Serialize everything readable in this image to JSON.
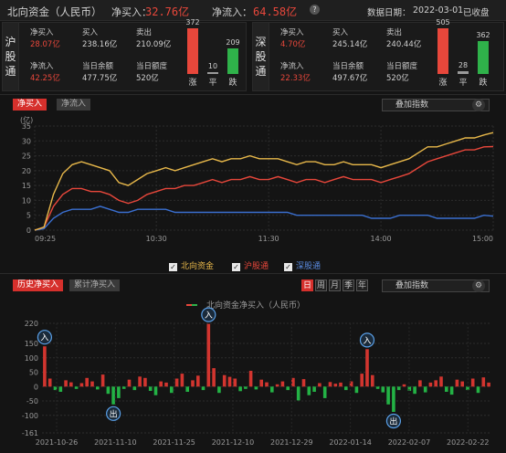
{
  "header": {
    "title": "北向资金（人民币）",
    "net_buy_label": "净买入：",
    "net_buy_value": "32.76亿",
    "net_inflow_label": "净流入：",
    "net_inflow_value": "64.58亿",
    "info_icon": "info-icon",
    "date_label": "数据日期：",
    "date_value": "2022-03-01",
    "status": "已收盘"
  },
  "sh": {
    "label": "沪股通",
    "net_buy_label": "净买入",
    "net_buy": "28.07亿",
    "buy_label": "买入",
    "buy": "238.16亿",
    "sell_label": "卖出",
    "sell": "210.09亿",
    "net_inflow_label": "净流入",
    "net_inflow": "42.25亿",
    "balance_label": "当日余额",
    "balance": "477.75亿",
    "quota_label": "当日额度",
    "quota": "520亿",
    "up_count": 372,
    "flat_count": 10,
    "down_count": 209,
    "up_label": "涨",
    "flat_label": "平",
    "down_label": "跌"
  },
  "sz": {
    "label": "深股通",
    "net_buy_label": "净买入",
    "net_buy": "4.70亿",
    "buy_label": "买入",
    "buy": "245.14亿",
    "sell_label": "卖出",
    "sell": "240.44亿",
    "net_inflow_label": "净流入",
    "net_inflow": "22.33亿",
    "balance_label": "当日余额",
    "balance": "497.67亿",
    "quota_label": "当日额度",
    "quota": "520亿",
    "up_count": 505,
    "flat_count": 28,
    "down_count": 362,
    "up_label": "涨",
    "flat_label": "平",
    "down_label": "跌"
  },
  "intraday": {
    "tabs": [
      "净买入",
      "净流入"
    ],
    "active_tab": 0,
    "overlay_select": "叠加指数",
    "legend": [
      "北向资金",
      "沪股通",
      "深股通"
    ]
  },
  "history": {
    "tabs": [
      "历史净买入",
      "累计净买入"
    ],
    "active_tab": 0,
    "periods": [
      "日",
      "周",
      "月",
      "季",
      "年"
    ],
    "active_period": 0,
    "overlay_select": "叠加指数",
    "marker_in": "入",
    "marker_out": "出"
  },
  "colors": {
    "red": "#e8473b",
    "green": "#2fb24a",
    "yellow": "#e8b84a",
    "blue": "#3a6fd0"
  },
  "chart_data": [
    {
      "type": "line",
      "title": "",
      "ylabel": "(亿)",
      "x_ticks": [
        "09:25",
        "10:30",
        "11:30",
        "14:00",
        "15:00"
      ],
      "y_ticks": [
        0,
        5,
        10,
        15,
        20,
        25,
        30,
        35
      ],
      "ylim": [
        0,
        35
      ],
      "x": [
        "09:25",
        "09:30",
        "09:35",
        "09:40",
        "09:45",
        "09:50",
        "09:55",
        "10:00",
        "10:05",
        "10:10",
        "10:15",
        "10:20",
        "10:25",
        "10:30",
        "10:35",
        "10:40",
        "10:45",
        "10:50",
        "10:55",
        "11:00",
        "11:05",
        "11:10",
        "11:15",
        "11:20",
        "11:25",
        "11:30",
        "13:05",
        "13:10",
        "13:15",
        "13:20",
        "13:25",
        "13:30",
        "13:35",
        "13:40",
        "13:45",
        "13:50",
        "13:55",
        "14:00",
        "14:05",
        "14:10",
        "14:15",
        "14:20",
        "14:25",
        "14:30",
        "14:35",
        "14:40",
        "14:45",
        "14:50",
        "14:55",
        "15:00"
      ],
      "series": [
        {
          "name": "北向资金",
          "color": "#e8b84a",
          "values": [
            0,
            1,
            12,
            19,
            22,
            23,
            22,
            21,
            20,
            16,
            15,
            17,
            19,
            20,
            21,
            20,
            21,
            22,
            23,
            24,
            23,
            24,
            24,
            25,
            24,
            24,
            24,
            23,
            22,
            23,
            23,
            22,
            22,
            23,
            22,
            22,
            22,
            21,
            22,
            23,
            24,
            26,
            28,
            28,
            29,
            30,
            31,
            31,
            32,
            32.8
          ]
        },
        {
          "name": "沪股通",
          "color": "#e8473b",
          "values": [
            0,
            1,
            8,
            12,
            14,
            14,
            13,
            13,
            12,
            10,
            9,
            10,
            12,
            13,
            14,
            14,
            15,
            15,
            16,
            17,
            16,
            17,
            17,
            18,
            17,
            17,
            18,
            17,
            16,
            17,
            17,
            16,
            17,
            18,
            17,
            17,
            17,
            16,
            17,
            18,
            19,
            21,
            23,
            24,
            25,
            26,
            27,
            27,
            28,
            28.1
          ]
        },
        {
          "name": "深股通",
          "color": "#3a6fd0",
          "values": [
            0,
            0.5,
            4,
            6,
            7,
            7,
            7,
            8,
            7,
            6,
            6,
            7,
            7,
            7,
            7,
            6,
            6,
            6,
            6,
            6,
            6,
            6,
            6,
            6,
            6,
            6,
            6,
            6,
            5,
            5,
            5,
            5,
            5,
            5,
            5,
            5,
            4,
            4,
            4,
            5,
            5,
            5,
            5,
            4,
            4,
            4,
            4,
            4,
            5,
            4.7
          ]
        }
      ]
    },
    {
      "type": "bar",
      "title": "北向资金净买入（人民币）",
      "y_ticks": [
        -161,
        -100,
        -50,
        0,
        50,
        100,
        150,
        220
      ],
      "ylim": [
        -161,
        220
      ],
      "x_ticks": [
        "2021-10-26",
        "2021-11-10",
        "2021-11-25",
        "2021-12-10",
        "2021-12-29",
        "2022-01-14",
        "2022-02-07",
        "2022-02-22"
      ],
      "values": [
        140,
        28,
        -12,
        -18,
        22,
        15,
        -8,
        12,
        30,
        18,
        -10,
        42,
        -25,
        -62,
        -40,
        -8,
        24,
        -12,
        35,
        30,
        -15,
        -30,
        18,
        14,
        -22,
        28,
        45,
        -18,
        22,
        38,
        -12,
        218,
        64,
        -22,
        40,
        34,
        28,
        -16,
        -8,
        55,
        -10,
        24,
        15,
        -20,
        8,
        18,
        -12,
        30,
        -48,
        26,
        -30,
        -18,
        12,
        -40,
        16,
        10,
        14,
        -12,
        18,
        -22,
        45,
        130,
        40,
        -8,
        -20,
        -62,
        -88,
        -12,
        8,
        -15,
        -25,
        22,
        -20,
        14,
        22,
        35,
        -18,
        -28,
        24,
        18,
        -12,
        28,
        -22,
        32,
        14
      ]
    }
  ]
}
